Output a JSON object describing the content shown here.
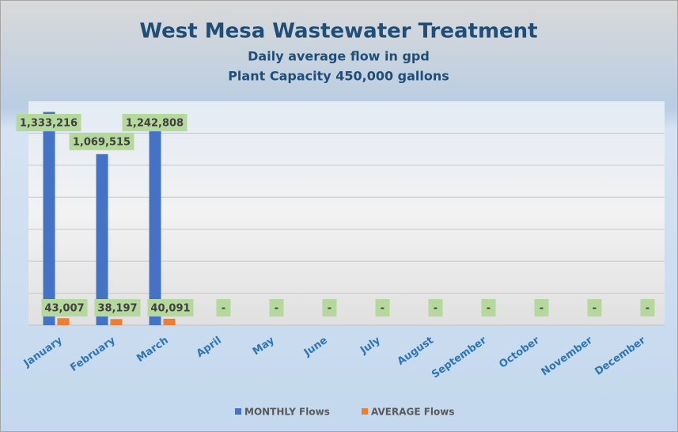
{
  "chart_data": {
    "type": "bar",
    "title": "West Mesa Wastewater Treatment",
    "subtitle": "Daily average flow in gpd",
    "subtitle2": "Plant Capacity 450,000 gallons",
    "categories": [
      "January",
      "February",
      "March",
      "April",
      "May",
      "June",
      "July",
      "August",
      "September",
      "October",
      "November",
      "December"
    ],
    "series": [
      {
        "name": "MONTHLY Flows",
        "color": "#4472c4",
        "values": [
          1333216,
          1069515,
          1242808,
          null,
          null,
          null,
          null,
          null,
          null,
          null,
          null,
          null
        ],
        "value_labels": [
          "1,333,216",
          "1,069,515",
          "1,242,808",
          null,
          null,
          null,
          null,
          null,
          null,
          null,
          null,
          null
        ]
      },
      {
        "name": "AVERAGE Flows",
        "color": "#ed7d31",
        "values": [
          43007,
          38197,
          40091,
          0,
          0,
          0,
          0,
          0,
          0,
          0,
          0,
          0
        ],
        "value_labels": [
          "43,007",
          "38,197",
          "40,091",
          "-",
          "-",
          "-",
          "-",
          "-",
          "-",
          "-",
          "-",
          "-"
        ]
      }
    ],
    "ylim": [
      0,
      1400000
    ],
    "legend": "bottom"
  }
}
